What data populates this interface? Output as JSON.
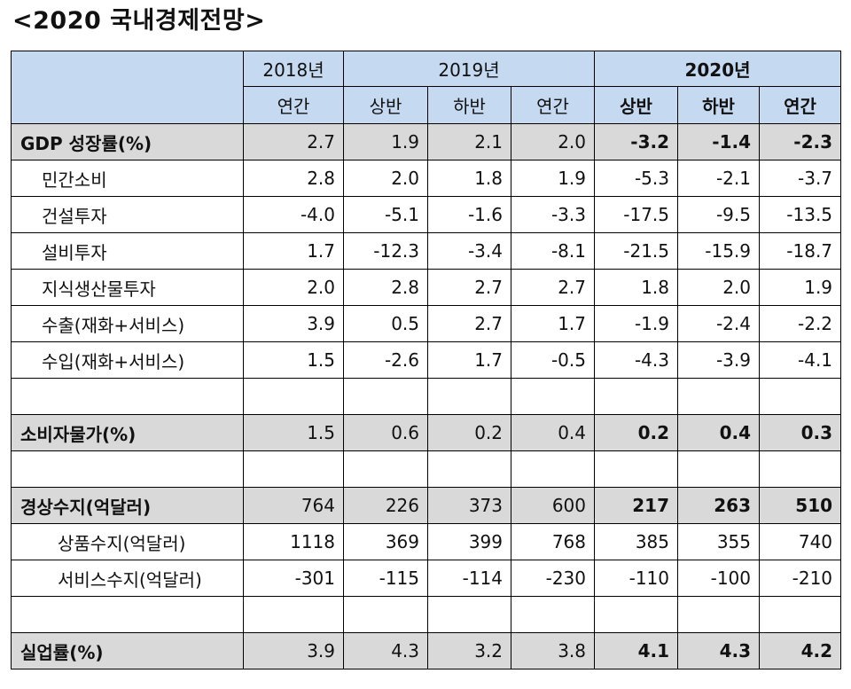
{
  "title": "<2020 국내경제전망>",
  "header": {
    "years": [
      "2018년",
      "2019년",
      "2020년"
    ],
    "sub": [
      "연간",
      "상반",
      "하반",
      "연간",
      "상반",
      "하반",
      "연간"
    ]
  },
  "rows": [
    {
      "label": "GDP 성장률(%)",
      "values": [
        "2.7",
        "1.9",
        "2.1",
        "2.0",
        "-3.2",
        "-1.4",
        "-2.3"
      ]
    },
    {
      "label": "민간소비",
      "values": [
        "2.8",
        "2.0",
        "1.8",
        "1.9",
        "-5.3",
        "-2.1",
        "-3.7"
      ]
    },
    {
      "label": "건설투자",
      "values": [
        "-4.0",
        "-5.1",
        "-1.6",
        "-3.3",
        "-17.5",
        "-9.5",
        "-13.5"
      ]
    },
    {
      "label": "설비투자",
      "values": [
        "1.7",
        "-12.3",
        "-3.4",
        "-8.1",
        "-21.5",
        "-15.9",
        "-18.7"
      ]
    },
    {
      "label": "지식생산물투자",
      "values": [
        "2.0",
        "2.8",
        "2.7",
        "2.7",
        "1.8",
        "2.0",
        "1.9"
      ]
    },
    {
      "label": "수출(재화+서비스)",
      "values": [
        "3.9",
        "0.5",
        "2.7",
        "1.7",
        "-1.9",
        "-2.4",
        "-2.2"
      ]
    },
    {
      "label": "수입(재화+서비스)",
      "values": [
        "1.5",
        "-2.6",
        "1.7",
        "-0.5",
        "-4.3",
        "-3.9",
        "-4.1"
      ]
    },
    {
      "label": "",
      "values": [
        "",
        "",
        "",
        "",
        "",
        "",
        ""
      ]
    },
    {
      "label": "소비자물가(%)",
      "values": [
        "1.5",
        "0.6",
        "0.2",
        "0.4",
        "0.2",
        "0.4",
        "0.3"
      ]
    },
    {
      "label": "",
      "values": [
        "",
        "",
        "",
        "",
        "",
        "",
        ""
      ]
    },
    {
      "label": "경상수지(억달러)",
      "values": [
        "764",
        "226",
        "373",
        "600",
        "217",
        "263",
        "510"
      ]
    },
    {
      "label": "상품수지(억달러)",
      "values": [
        "1118",
        "369",
        "399",
        "768",
        "385",
        "355",
        "740"
      ]
    },
    {
      "label": "서비스수지(억달러)",
      "values": [
        "-301",
        "-115",
        "-114",
        "-230",
        "-110",
        "-100",
        "-210"
      ]
    },
    {
      "label": "",
      "values": [
        "",
        "",
        "",
        "",
        "",
        "",
        ""
      ]
    },
    {
      "label": "실업률(%)",
      "values": [
        "3.9",
        "4.3",
        "3.2",
        "3.8",
        "4.1",
        "4.3",
        "4.2"
      ]
    }
  ]
}
